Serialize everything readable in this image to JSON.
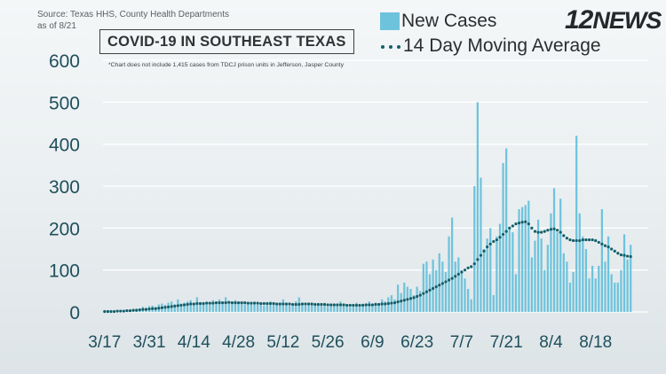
{
  "header": {
    "source_line1": "Source: Texas HHS, County Health Departments",
    "source_line2": "as of 8/21",
    "title": "COVID-19 IN SOUTHEAST TEXAS",
    "note": "*Chart does not include 1,415 cases from TDCJ prison units in Jefferson, Jasper County",
    "logo_number": "12",
    "logo_text": "NEWS"
  },
  "legend": {
    "bars_label": "New Cases",
    "line_label": "14 Day Moving Average"
  },
  "colors": {
    "bars": "#6ec3dc",
    "moving_average": "#125f6a",
    "grid": "#ffffff",
    "axis_text": "#1f4f5c"
  },
  "chart_data": {
    "type": "bar",
    "title": "COVID-19 IN SOUTHEAST TEXAS",
    "x_start": "3/17",
    "x_end": "8/21",
    "x_tick_labels": [
      "3/17",
      "3/31",
      "4/14",
      "4/28",
      "5/12",
      "5/26",
      "6/9",
      "6/23",
      "7/7",
      "7/21",
      "8/4",
      "8/18"
    ],
    "y_ticks": [
      0,
      100,
      200,
      300,
      400,
      500,
      600
    ],
    "ylim": [
      0,
      600
    ],
    "grid": true,
    "series": [
      {
        "name": "New Cases",
        "type": "bar",
        "values": [
          1,
          1,
          2,
          1,
          3,
          2,
          3,
          5,
          4,
          6,
          8,
          7,
          12,
          10,
          14,
          15,
          12,
          18,
          20,
          17,
          22,
          25,
          18,
          30,
          20,
          22,
          25,
          28,
          20,
          35,
          22,
          18,
          25,
          20,
          28,
          22,
          30,
          25,
          35,
          20,
          22,
          28,
          25,
          20,
          18,
          22,
          20,
          25,
          18,
          22,
          15,
          20,
          25,
          18,
          20,
          22,
          30,
          18,
          15,
          20,
          25,
          35,
          20,
          15,
          18,
          22,
          18,
          20,
          15,
          18,
          12,
          16,
          20,
          18,
          25,
          20,
          15,
          12,
          18,
          22,
          18,
          20,
          15,
          25,
          18,
          22,
          20,
          30,
          25,
          35,
          40,
          30,
          65,
          45,
          70,
          60,
          55,
          40,
          60,
          50,
          115,
          120,
          90,
          125,
          100,
          140,
          120,
          95,
          180,
          225,
          120,
          130,
          100,
          80,
          55,
          30,
          300,
          500,
          320,
          150,
          175,
          200,
          40,
          180,
          210,
          355,
          390,
          200,
          190,
          90,
          245,
          250,
          255,
          265,
          130,
          170,
          220,
          175,
          100,
          160,
          235,
          295,
          190,
          270,
          140,
          120,
          70,
          95,
          420,
          235,
          180,
          150,
          80,
          110,
          80,
          110,
          245,
          120,
          180,
          90,
          70,
          70,
          100,
          185,
          125,
          160
        ],
        "point_label": "daily new cases"
      },
      {
        "name": "14 Day Moving Average",
        "type": "line",
        "style": "dotted",
        "values": [
          1,
          1,
          1,
          1,
          2,
          2,
          2,
          3,
          3,
          4,
          4,
          5,
          6,
          6,
          7,
          8,
          8,
          9,
          10,
          11,
          12,
          13,
          14,
          15,
          16,
          17,
          18,
          19,
          19,
          20,
          20,
          20,
          21,
          21,
          21,
          22,
          22,
          22,
          22,
          23,
          22,
          22,
          22,
          22,
          22,
          21,
          21,
          21,
          21,
          20,
          20,
          20,
          20,
          20,
          19,
          19,
          19,
          19,
          19,
          18,
          18,
          18,
          19,
          19,
          19,
          19,
          18,
          18,
          18,
          18,
          17,
          17,
          17,
          17,
          17,
          17,
          16,
          16,
          16,
          16,
          16,
          16,
          17,
          17,
          17,
          18,
          18,
          19,
          19,
          20,
          21,
          22,
          24,
          26,
          28,
          30,
          32,
          34,
          37,
          40,
          44,
          48,
          52,
          56,
          60,
          64,
          68,
          72,
          76,
          80,
          85,
          90,
          95,
          100,
          105,
          108,
          115,
          125,
          135,
          145,
          155,
          162,
          168,
          172,
          178,
          185,
          192,
          200,
          205,
          210,
          212,
          214,
          215,
          210,
          200,
          192,
          190,
          190,
          192,
          195,
          197,
          198,
          195,
          190,
          182,
          176,
          172,
          170,
          170,
          170,
          172,
          172,
          172,
          172,
          170,
          166,
          162,
          158,
          155,
          150,
          145,
          140,
          136,
          135,
          133,
          132
        ],
        "point_label": "14-day moving average"
      }
    ]
  }
}
